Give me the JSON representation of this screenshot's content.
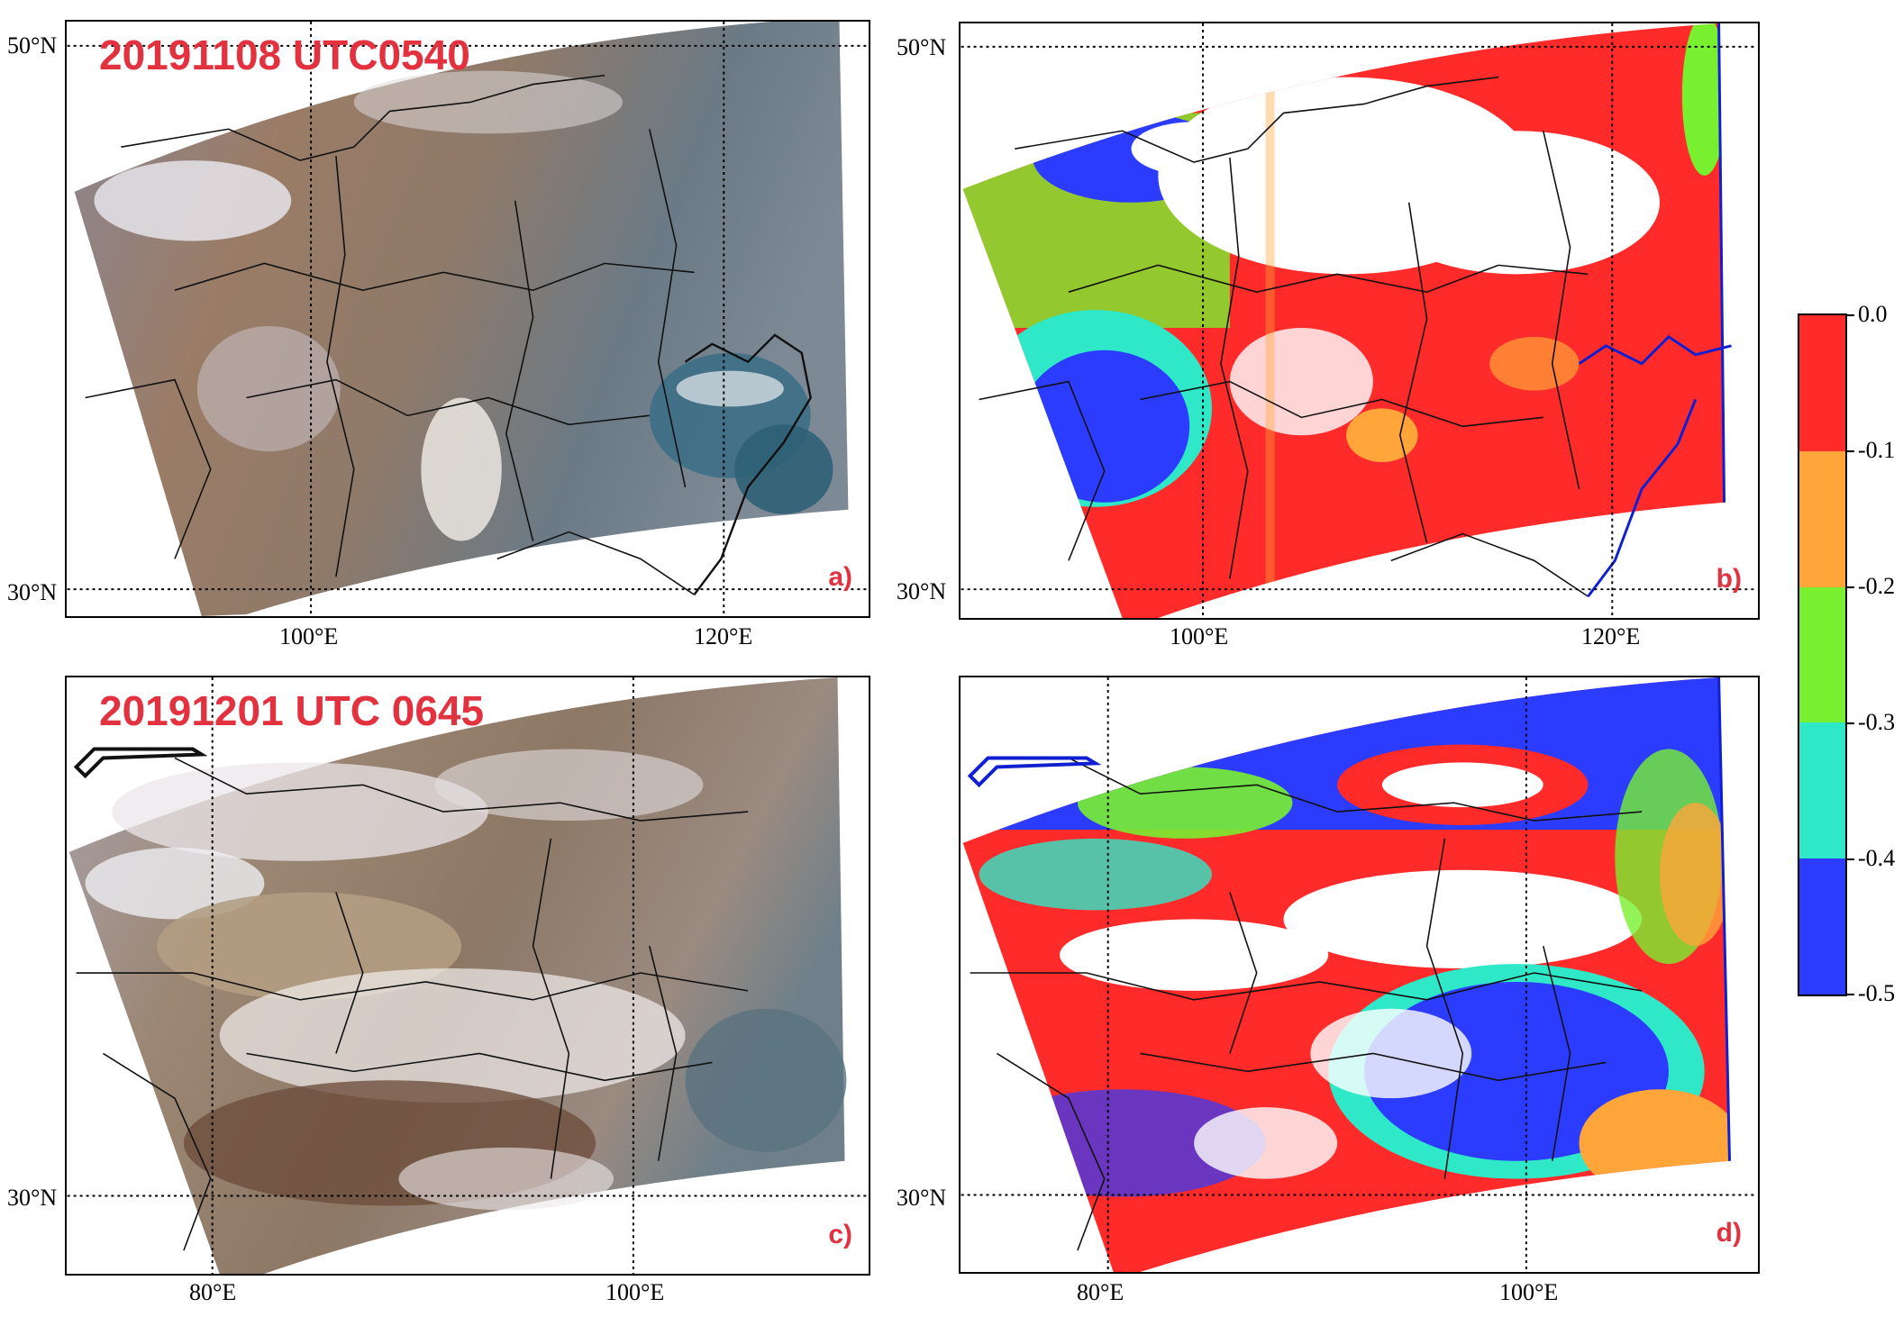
{
  "panels": [
    {
      "tag": "a)",
      "title": "20191108 UTC0540",
      "lat_labels": [
        "50°N",
        "30°N"
      ],
      "lon_labels": [
        "100°E",
        "120°E"
      ]
    },
    {
      "tag": "b)",
      "lat_labels": [
        "50°N",
        "30°N"
      ],
      "lon_labels": [
        "100°E",
        "120°E"
      ]
    },
    {
      "tag": "c)",
      "title": "20191201 UTC 0645",
      "lat_labels": [
        "30°N"
      ],
      "lon_labels": [
        "80°E",
        "100°E"
      ]
    },
    {
      "tag": "d)",
      "lat_labels": [
        "30°N"
      ],
      "lon_labels": [
        "80°E",
        "100°E"
      ]
    }
  ],
  "colorbar": {
    "ticks": [
      "0.0",
      "-0.1",
      "-0.2",
      "-0.3",
      "-0.4",
      "-0.5"
    ],
    "colors": [
      "#ff2a2a",
      "#ffa53a",
      "#78f030",
      "#2ee8c8",
      "#2b3cff"
    ]
  },
  "colors": {
    "title_red": "#e23240",
    "coast_blue": "#1020d0"
  }
}
